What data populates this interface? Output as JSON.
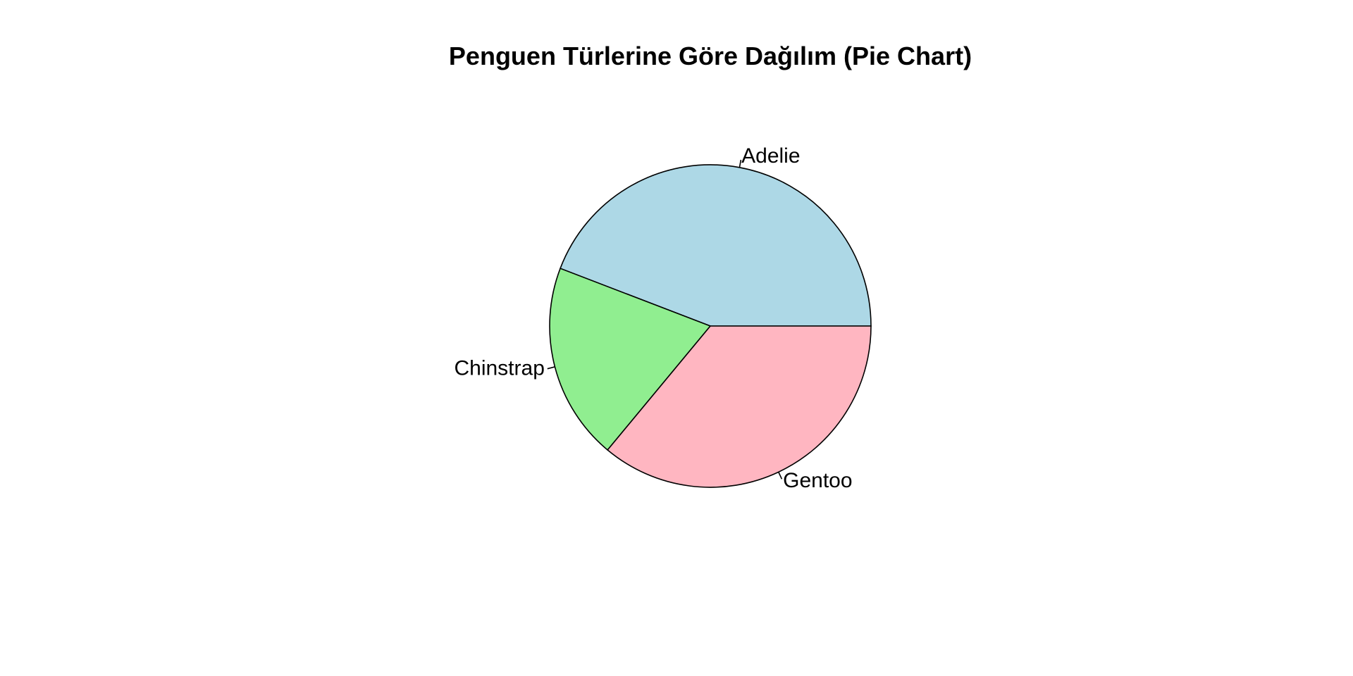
{
  "chart_data": {
    "type": "pie",
    "title": "Penguen Türlerine Göre Dağılım (Pie Chart)",
    "categories": [
      "Adelie",
      "Chinstrap",
      "Gentoo"
    ],
    "values": [
      152,
      68,
      124
    ],
    "colors": [
      "#ADD8E6",
      "#90EE90",
      "#FFB6C1"
    ],
    "start": "0 degrees (3 o'clock)",
    "direction": "counterclockwise",
    "legend": "none"
  }
}
